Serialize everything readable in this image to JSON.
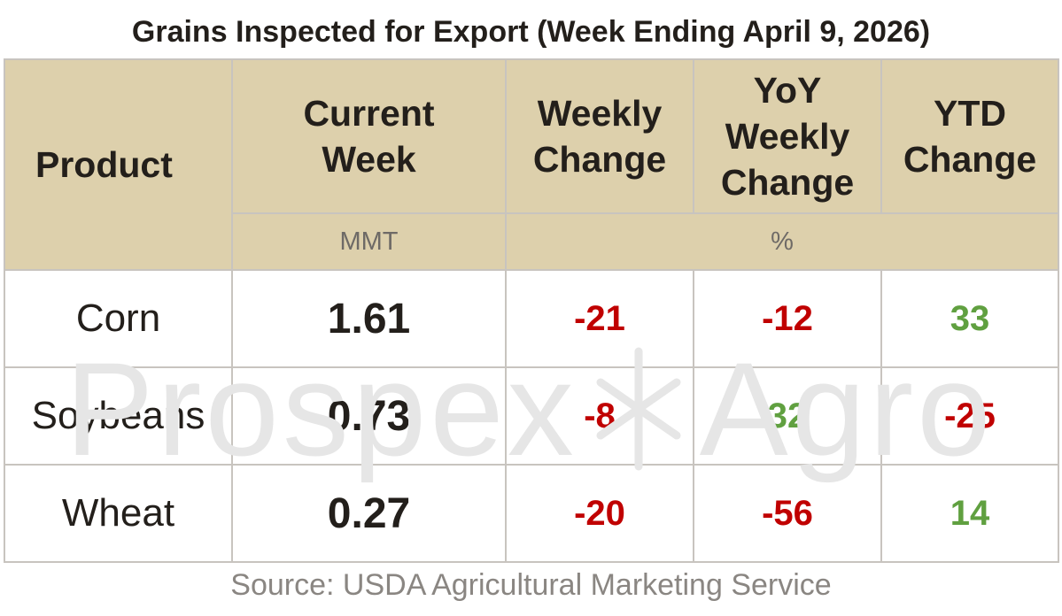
{
  "chart_data": {
    "type": "table",
    "title": "Grains Inspected for Export (Week Ending April 9, 2026)",
    "columns": [
      "Product",
      "Current Week",
      "Weekly Change",
      "YoY Weekly Change",
      "YTD Change"
    ],
    "units": {
      "current_week": "MMT",
      "changes": "%"
    },
    "rows": [
      {
        "product": "Corn",
        "current_week": "1.61",
        "weekly_change": "-21",
        "yoy_weekly_change": "-12",
        "ytd_change": "33"
      },
      {
        "product": "Soybeans",
        "current_week": "0.73",
        "weekly_change": "-8",
        "yoy_weekly_change": "32",
        "ytd_change": "-25"
      },
      {
        "product": "Wheat",
        "current_week": "0.27",
        "weekly_change": "-20",
        "yoy_weekly_change": "-56",
        "ytd_change": "14"
      }
    ],
    "colors": {
      "header_bg": "#ddd0ac",
      "negative": "#c00000",
      "positive": "#60a040"
    }
  },
  "watermark": {
    "left": "Prospex",
    "right": "Agro"
  },
  "source": "Source: USDA Agricultural Marketing Service"
}
